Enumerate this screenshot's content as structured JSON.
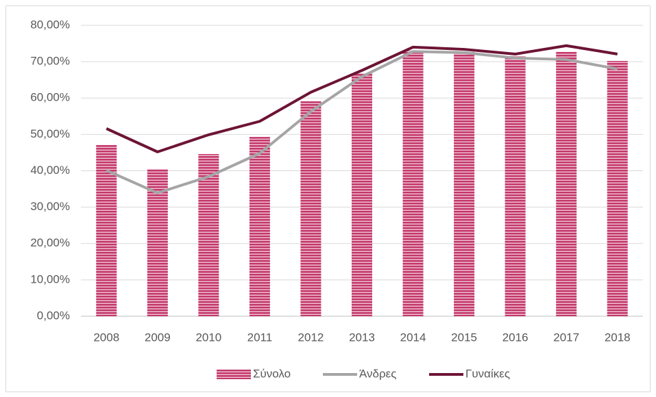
{
  "chart_data": {
    "type": "bar",
    "categories": [
      "2008",
      "2009",
      "2010",
      "2011",
      "2012",
      "2013",
      "2014",
      "2015",
      "2016",
      "2017",
      "2018"
    ],
    "series": [
      {
        "name": "Σύνολο",
        "type": "bar",
        "color": "#c2386a",
        "values": [
          47.1,
          40.5,
          44.6,
          49.3,
          59.1,
          66.8,
          73.0,
          72.7,
          71.5,
          72.7,
          70.2
        ]
      },
      {
        "name": "Άνδρες",
        "type": "line",
        "color": "#a5a5a5",
        "values": [
          40.1,
          33.9,
          38.4,
          44.8,
          56.3,
          65.9,
          72.8,
          72.5,
          71.0,
          70.6,
          68.0
        ]
      },
      {
        "name": "Γυναίκες",
        "type": "line",
        "color": "#6d1435",
        "values": [
          51.6,
          45.2,
          49.9,
          53.6,
          61.6,
          67.6,
          74.0,
          73.4,
          72.1,
          74.4,
          72.1
        ]
      }
    ],
    "ylim": [
      0,
      80
    ],
    "yticks": [
      {
        "value": 0,
        "label": "0,00%"
      },
      {
        "value": 10,
        "label": "10,00%"
      },
      {
        "value": 20,
        "label": "20,00%"
      },
      {
        "value": 30,
        "label": "30,00%"
      },
      {
        "value": 40,
        "label": "40,00%"
      },
      {
        "value": 50,
        "label": "50,00%"
      },
      {
        "value": 60,
        "label": "60,00%"
      },
      {
        "value": 70,
        "label": "70,00%"
      },
      {
        "value": 80,
        "label": "80,00%"
      }
    ],
    "grid": true,
    "legend": "bottom"
  }
}
